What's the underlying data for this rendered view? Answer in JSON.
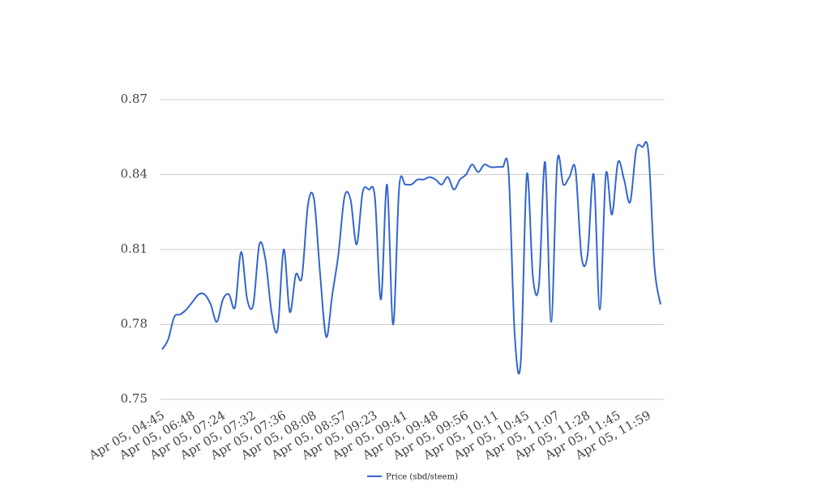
{
  "chart_data": {
    "type": "line",
    "categories": [
      "Apr 05, 04:45",
      null,
      null,
      null,
      null,
      "Apr 05, 06:48",
      null,
      null,
      null,
      null,
      "Apr 05, 07:24",
      null,
      null,
      null,
      null,
      "Apr 05, 07:32",
      null,
      null,
      null,
      null,
      "Apr 05, 07:36",
      null,
      null,
      null,
      null,
      "Apr 05, 08:08",
      null,
      null,
      null,
      null,
      "Apr 05, 08:57",
      null,
      null,
      null,
      null,
      "Apr 05, 09:23",
      null,
      null,
      null,
      null,
      "Apr 05, 09:41",
      null,
      null,
      null,
      null,
      "Apr 05, 09:48",
      null,
      null,
      null,
      null,
      "Apr 05, 09:56",
      null,
      null,
      null,
      null,
      "Apr 05, 10:11",
      null,
      null,
      null,
      null,
      "Apr 05, 10:45",
      null,
      null,
      null,
      null,
      "Apr 05, 11:07",
      null,
      null,
      null,
      null,
      "Apr 05, 11:28",
      null,
      null,
      null,
      null,
      "Apr 05, 11:45",
      null,
      null,
      null,
      null,
      "Apr 05, 11:59",
      null,
      null
    ],
    "series": [
      {
        "name": "Price (sbd/steem)",
        "color": "#3366cc",
        "values": [
          0.77,
          0.774,
          0.783,
          0.784,
          0.786,
          0.789,
          0.792,
          0.792,
          0.788,
          0.781,
          0.79,
          0.792,
          0.787,
          0.809,
          0.79,
          0.788,
          0.812,
          0.806,
          0.785,
          0.778,
          0.81,
          0.785,
          0.8,
          0.799,
          0.828,
          0.83,
          0.8,
          0.775,
          0.792,
          0.808,
          0.831,
          0.83,
          0.812,
          0.833,
          0.834,
          0.831,
          0.79,
          0.836,
          0.78,
          0.835,
          0.836,
          0.836,
          0.838,
          0.838,
          0.839,
          0.838,
          0.836,
          0.839,
          0.834,
          0.838,
          0.84,
          0.844,
          0.841,
          0.844,
          0.843,
          0.843,
          0.843,
          0.841,
          0.776,
          0.765,
          0.84,
          0.799,
          0.796,
          0.845,
          0.781,
          0.845,
          0.836,
          0.839,
          0.842,
          0.807,
          0.808,
          0.84,
          0.786,
          0.84,
          0.824,
          0.845,
          0.838,
          0.829,
          0.85,
          0.851,
          0.849,
          0.803,
          0.788
        ]
      }
    ],
    "ylim": [
      0.75,
      0.87
    ],
    "yticks": [
      0.75,
      0.78,
      0.81,
      0.84,
      0.87
    ],
    "grid": true,
    "legend": "bottom"
  }
}
